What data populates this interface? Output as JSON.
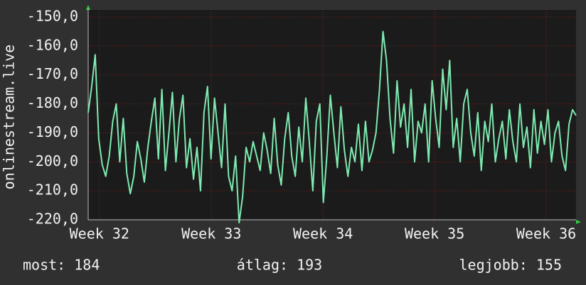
{
  "chart_data": {
    "type": "line",
    "y_label": "onlinestream.live",
    "x": [
      0,
      1,
      2,
      3,
      4,
      5,
      6,
      7,
      8,
      9,
      10,
      11,
      12,
      13,
      14,
      15,
      16,
      17,
      18,
      19,
      20,
      21,
      22,
      23,
      24,
      25,
      26,
      27,
      28,
      29,
      30,
      31,
      32,
      33,
      34,
      35,
      36,
      37,
      38,
      39,
      40,
      41,
      42,
      43,
      44,
      45,
      46,
      47,
      48,
      49,
      50,
      51,
      52,
      53,
      54,
      55,
      56,
      57,
      58,
      59,
      60,
      61,
      62,
      63,
      64,
      65,
      66,
      67,
      68,
      69,
      70,
      71,
      72,
      73,
      74,
      75,
      76,
      77,
      78,
      79,
      80,
      81,
      82,
      83,
      84,
      85,
      86,
      87,
      88,
      89,
      90,
      91,
      92,
      93,
      94,
      95,
      96,
      97,
      98,
      99,
      100,
      101,
      102,
      103,
      104,
      105,
      106,
      107,
      108,
      109,
      110,
      111,
      112,
      113,
      114,
      115,
      116,
      117,
      118,
      119,
      120,
      121,
      122,
      123,
      124,
      125,
      126,
      127,
      128,
      129,
      130,
      131,
      132,
      133,
      134,
      135,
      136,
      137,
      138,
      139
    ],
    "series": [
      {
        "color": "#7eeab0",
        "values": [
          -183,
          -174,
          -163,
          -192,
          -201,
          -205,
          -198,
          -186,
          -180,
          -200,
          -185,
          -204,
          -211,
          -205,
          -193,
          -199,
          -207,
          -195,
          -186,
          -178,
          -199,
          -175,
          -203,
          -190,
          -176,
          -200,
          -185,
          -177,
          -202,
          -192,
          -206,
          -195,
          -210,
          -183,
          -174,
          -199,
          -178,
          -190,
          -202,
          -180,
          -205,
          -210,
          -198,
          -221,
          -212,
          -195,
          -200,
          -193,
          -198,
          -203,
          -190,
          -196,
          -204,
          -185,
          -201,
          -208,
          -192,
          -183,
          -198,
          -205,
          -188,
          -200,
          -178,
          -193,
          -210,
          -186,
          -180,
          -214,
          -198,
          -177,
          -190,
          -202,
          -181,
          -196,
          -205,
          -195,
          -200,
          -187,
          -203,
          -186,
          -200,
          -196,
          -190,
          -175,
          -155,
          -165,
          -185,
          -197,
          -172,
          -188,
          -180,
          -195,
          -175,
          -200,
          -186,
          -190,
          -180,
          -200,
          -172,
          -185,
          -195,
          -168,
          -182,
          -165,
          -195,
          -185,
          -200,
          -180,
          -175,
          -190,
          -198,
          -183,
          -203,
          -186,
          -193,
          -180,
          -200,
          -192,
          -186,
          -199,
          -182,
          -193,
          -200,
          -180,
          -195,
          -188,
          -202,
          -182,
          -197,
          -186,
          -194,
          -182,
          -200,
          -190,
          -186,
          -198,
          -203,
          -187,
          -182,
          -184
        ]
      }
    ],
    "xlim": [
      0,
      139
    ],
    "xticks": [
      {
        "value": 3.2,
        "label": "Week 32"
      },
      {
        "value": 35.1,
        "label": "Week 33"
      },
      {
        "value": 66.9,
        "label": "Week 34"
      },
      {
        "value": 98.7,
        "label": "Week 35"
      },
      {
        "value": 130.5,
        "label": "Week 36"
      }
    ],
    "ylim": [
      -220,
      -150
    ],
    "yticks": [
      {
        "value": -220,
        "label": "-220,0"
      },
      {
        "value": -210,
        "label": "-210,0"
      },
      {
        "value": -200,
        "label": "-200,0"
      },
      {
        "value": -190,
        "label": "-190,0"
      },
      {
        "value": -180,
        "label": "-180,0"
      },
      {
        "value": -170,
        "label": "-170,0"
      },
      {
        "value": -160,
        "label": "-160,0"
      },
      {
        "value": -150,
        "label": "-150,0"
      }
    ],
    "grid": true,
    "stats": [
      "most: 184",
      "átlag: 193",
      "legjobb: 155"
    ]
  }
}
